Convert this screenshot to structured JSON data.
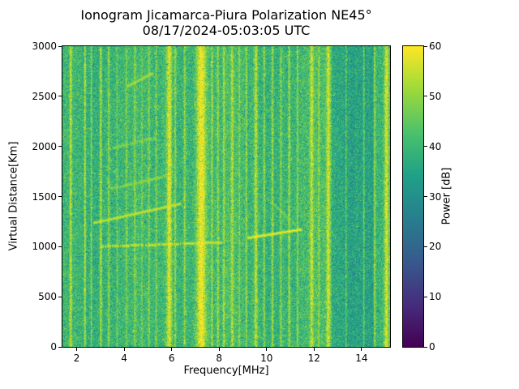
{
  "chart_data": {
    "type": "heatmap",
    "title": "Ionogram Jicamarca-Piura Polarization NE45°",
    "subtitle": "08/17/2024-05:03:05 UTC",
    "xlabel": "Frequency[MHz]",
    "ylabel": "Virtual Distance[Km]",
    "colorbar_label": "Power [dB]",
    "colormap": "viridis",
    "xlim": [
      1.4,
      15.2
    ],
    "ylim": [
      0,
      3000
    ],
    "clim": [
      0,
      60
    ],
    "x_ticks": [
      2,
      4,
      6,
      8,
      10,
      12,
      14
    ],
    "y_ticks": [
      0,
      500,
      1000,
      1500,
      2000,
      2500,
      3000
    ],
    "colorbar_ticks": [
      0,
      10,
      20,
      30,
      40,
      50,
      60
    ],
    "background_power_db": 40,
    "noise_db": 7,
    "quiet_band": {
      "from": 12.75,
      "to": 14.5,
      "power": 35
    },
    "rfi_bands": [
      {
        "freq": 1.75,
        "width": 0.12,
        "power": 55
      },
      {
        "freq": 2.35,
        "width": 0.1,
        "power": 54
      },
      {
        "freq": 2.62,
        "width": 0.08,
        "power": 50
      },
      {
        "freq": 3.02,
        "width": 0.12,
        "power": 53
      },
      {
        "freq": 3.35,
        "width": 0.1,
        "power": 50
      },
      {
        "freq": 3.7,
        "width": 0.08,
        "power": 47
      },
      {
        "freq": 4.1,
        "width": 0.1,
        "power": 48
      },
      {
        "freq": 4.45,
        "width": 0.1,
        "power": 49
      },
      {
        "freq": 4.75,
        "width": 0.08,
        "power": 47
      },
      {
        "freq": 5.05,
        "width": 0.1,
        "power": 49
      },
      {
        "freq": 5.35,
        "width": 0.1,
        "power": 48
      },
      {
        "freq": 5.9,
        "width": 0.3,
        "power": 57
      },
      {
        "freq": 6.15,
        "width": 0.1,
        "power": 51
      },
      {
        "freq": 6.55,
        "width": 0.12,
        "power": 50
      },
      {
        "freq": 7.25,
        "width": 0.55,
        "power": 60
      },
      {
        "freq": 7.7,
        "width": 0.1,
        "power": 52
      },
      {
        "freq": 7.95,
        "width": 0.1,
        "power": 51
      },
      {
        "freq": 8.2,
        "width": 0.12,
        "power": 52
      },
      {
        "freq": 8.55,
        "width": 0.15,
        "power": 53
      },
      {
        "freq": 8.85,
        "width": 0.1,
        "power": 50
      },
      {
        "freq": 9.15,
        "width": 0.1,
        "power": 51
      },
      {
        "freq": 9.55,
        "width": 0.18,
        "power": 53
      },
      {
        "freq": 9.9,
        "width": 0.1,
        "power": 50
      },
      {
        "freq": 10.25,
        "width": 0.12,
        "power": 51
      },
      {
        "freq": 10.6,
        "width": 0.1,
        "power": 50
      },
      {
        "freq": 10.95,
        "width": 0.12,
        "power": 52
      },
      {
        "freq": 11.3,
        "width": 0.1,
        "power": 50
      },
      {
        "freq": 11.9,
        "width": 0.2,
        "power": 55
      },
      {
        "freq": 12.2,
        "width": 0.1,
        "power": 51
      },
      {
        "freq": 12.6,
        "width": 0.22,
        "power": 56
      },
      {
        "freq": 13.35,
        "width": 0.08,
        "power": 46
      },
      {
        "freq": 14.1,
        "width": 0.08,
        "power": 47
      },
      {
        "freq": 14.55,
        "width": 0.12,
        "power": 50
      },
      {
        "freq": 15.05,
        "width": 0.25,
        "power": 56
      }
    ],
    "echo_traces": [
      {
        "x1": 2.7,
        "y1": 1240,
        "x2": 6.35,
        "y2": 1430,
        "power": 55,
        "thickness_km": 18,
        "patchy": false
      },
      {
        "x1": 3.0,
        "y1": 1005,
        "x2": 8.1,
        "y2": 1045,
        "power": 56,
        "thickness_km": 15,
        "patchy": true
      },
      {
        "x1": 9.2,
        "y1": 1090,
        "x2": 11.45,
        "y2": 1175,
        "power": 59,
        "thickness_km": 20,
        "patchy": false
      },
      {
        "x1": 3.4,
        "y1": 1580,
        "x2": 5.7,
        "y2": 1705,
        "power": 50,
        "thickness_km": 15,
        "patchy": true
      },
      {
        "x1": 3.3,
        "y1": 1975,
        "x2": 5.3,
        "y2": 2090,
        "power": 49,
        "thickness_km": 15,
        "patchy": true
      },
      {
        "x1": 4.1,
        "y1": 2600,
        "x2": 5.2,
        "y2": 2735,
        "power": 52,
        "thickness_km": 18,
        "patchy": false
      },
      {
        "x1": 10.0,
        "y1": 1490,
        "x2": 11.35,
        "y2": 1185,
        "power": 47,
        "thickness_km": 15,
        "patchy": true
      }
    ]
  }
}
